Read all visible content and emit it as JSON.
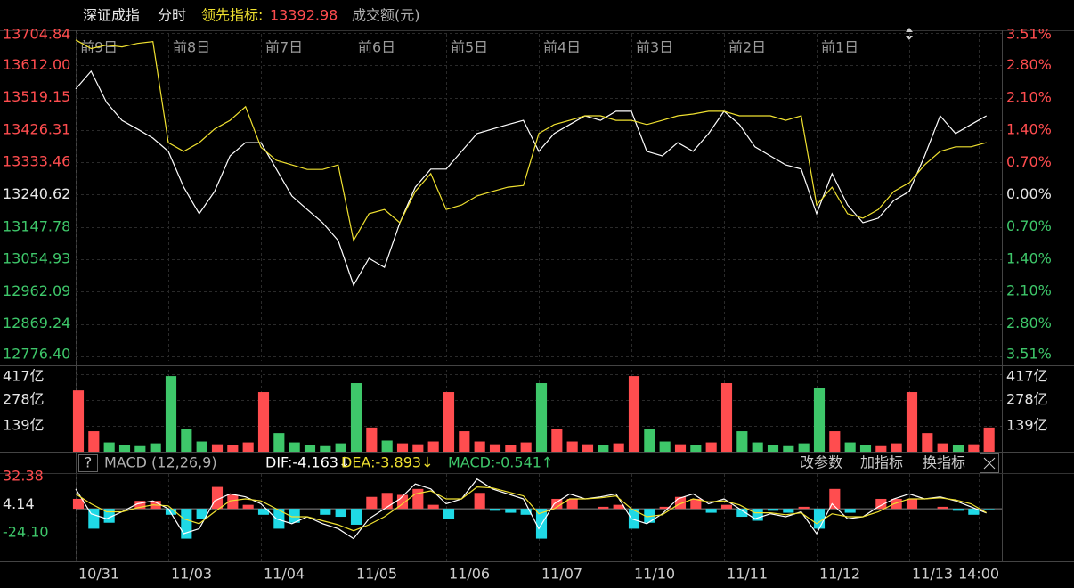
{
  "header": {
    "index_name": "深证成指",
    "mode": "分时",
    "leading_label": "领先指标:",
    "leading_value": "13392.98",
    "volume_label": "成交额(元)"
  },
  "chart_data": [
    {
      "type": "line",
      "x": [
        0,
        1,
        2,
        3,
        4,
        5,
        6,
        7,
        8,
        9,
        10,
        11,
        12,
        13,
        14,
        15,
        16,
        17,
        18,
        19,
        20,
        21,
        22,
        23,
        24,
        25,
        26,
        27,
        28,
        29,
        30,
        31,
        32,
        33,
        34,
        35,
        36,
        37,
        38,
        39,
        40,
        41,
        42,
        43,
        44,
        45,
        46,
        47,
        48,
        49,
        50,
        51,
        52,
        53,
        54,
        55,
        56,
        57,
        58,
        59
      ],
      "xlim": [
        0,
        60
      ],
      "xticks": [
        {
          "value": 0,
          "label": "前9日"
        },
        {
          "value": 6,
          "label": "前8日"
        },
        {
          "value": 12,
          "label": "前7日"
        },
        {
          "value": 18,
          "label": "前6日"
        },
        {
          "value": 24,
          "label": "前5日"
        },
        {
          "value": 30,
          "label": "前4日"
        },
        {
          "value": 36,
          "label": "前3日"
        },
        {
          "value": 42,
          "label": "前2日"
        },
        {
          "value": 48,
          "label": "前1日"
        }
      ],
      "ylim": [
        12776.4,
        13704.84
      ],
      "yticks": [
        13704.84,
        {
          "value": 13612,
          "label": "13612.00"
        },
        13519.15,
        13426.31,
        13333.46,
        13240.62,
        13147.78,
        13054.93,
        12962.09,
        12869.24,
        {
          "value": 12776.4,
          "label": "12776.40"
        }
      ],
      "y2lim": [
        -3.51,
        3.51
      ],
      "y2ticks": [
        {
          "value": 3.51,
          "label": "3.51%"
        },
        {
          "value": 2.8,
          "label": "2.80%"
        },
        {
          "value": 2.1,
          "label": "2.10%"
        },
        {
          "value": 1.4,
          "label": "1.40%"
        },
        {
          "value": 0.7,
          "label": "0.70%"
        },
        {
          "value": 0,
          "label": "0.00%"
        },
        {
          "value": -0.7,
          "label": "0.70%"
        },
        {
          "value": -1.4,
          "label": "1.40%"
        },
        {
          "value": -2.1,
          "label": "2.10%"
        },
        {
          "value": -2.8,
          "label": "2.80%"
        },
        {
          "value": -3.51,
          "label": "3.51%"
        }
      ],
      "series": [
        {
          "color": "#ffffff",
          "values": [
            13544,
            13595,
            13505,
            13454,
            13429,
            13403,
            13365,
            13262,
            13186,
            13250,
            13352,
            13390,
            13390,
            13314,
            13237,
            13198,
            13160,
            13109,
            12981,
            13058,
            13032,
            13160,
            13262,
            13314,
            13314,
            13365,
            13416,
            13429,
            13442,
            13454,
            13365,
            13416,
            13442,
            13467,
            13454,
            13480,
            13480,
            13365,
            13352,
            13390,
            13365,
            13416,
            13480,
            13442,
            13378,
            13352,
            13326,
            13314,
            13186,
            13301,
            13211,
            13160,
            13173,
            13224,
            13250,
            13352,
            13467,
            13416,
            13442,
            13467
          ]
        },
        {
          "color": "#f0e130",
          "values": [
            13685,
            13660,
            13670,
            13665,
            13675,
            13680,
            13390,
            13365,
            13390,
            13429,
            13454,
            13493,
            13377,
            13339,
            13326,
            13313,
            13313,
            13326,
            13109,
            13186,
            13198,
            13160,
            13250,
            13301,
            13198,
            13211,
            13237,
            13250,
            13262,
            13267,
            13416,
            13442,
            13454,
            13467,
            13467,
            13454,
            13454,
            13442,
            13454,
            13467,
            13472,
            13480,
            13480,
            13467,
            13467,
            13467,
            13454,
            13467,
            13211,
            13262,
            13186,
            13173,
            13198,
            13250,
            13275,
            13326,
            13365,
            13378,
            13378,
            13390
          ]
        }
      ],
      "grid": true
    },
    {
      "type": "bar",
      "x": [
        0,
        1,
        2,
        3,
        4,
        5,
        6,
        7,
        8,
        9,
        10,
        11,
        12,
        13,
        14,
        15,
        16,
        17,
        18,
        19,
        20,
        21,
        22,
        23,
        24,
        25,
        26,
        27,
        28,
        29,
        30,
        31,
        32,
        33,
        34,
        35,
        36,
        37,
        38,
        39,
        40,
        41,
        42,
        43,
        44,
        45,
        46,
        47,
        48,
        49,
        50,
        51,
        52,
        53,
        54,
        55,
        56,
        57,
        58,
        59
      ],
      "xlim": [
        0,
        60
      ],
      "ylim": [
        0,
        417
      ],
      "yticks": [
        {
          "value": 417,
          "label": "417亿"
        },
        {
          "value": 278,
          "label": "278亿"
        },
        {
          "value": 139,
          "label": "139亿"
        }
      ],
      "values": [
        330,
        110,
        50,
        35,
        30,
        45,
        407,
        120,
        55,
        40,
        35,
        50,
        321,
        100,
        50,
        35,
        30,
        45,
        369,
        130,
        60,
        45,
        40,
        55,
        321,
        110,
        55,
        40,
        35,
        50,
        369,
        120,
        55,
        40,
        35,
        45,
        407,
        120,
        55,
        40,
        35,
        50,
        369,
        110,
        50,
        35,
        30,
        45,
        345,
        110,
        50,
        35,
        30,
        45,
        321,
        100,
        45,
        35,
        40,
        130
      ],
      "up_color": "#ff4d4f",
      "down_color": "#3ec76a"
    },
    {
      "type": "macd",
      "help_button": "?",
      "title": "MACD (12,26,9)",
      "legend_labels": [
        "DIF:-4.163↓",
        "DEA:-3.893↓",
        "MACD:-0.541↑"
      ],
      "buttons": [
        "改参数",
        "加指标",
        "换指标"
      ],
      "x": [
        0,
        1,
        2,
        3,
        4,
        5,
        6,
        7,
        8,
        9,
        10,
        11,
        12,
        13,
        14,
        15,
        16,
        17,
        18,
        19,
        20,
        21,
        22,
        23,
        24,
        25,
        26,
        27,
        28,
        29,
        30,
        31,
        32,
        33,
        34,
        35,
        36,
        37,
        38,
        39,
        40,
        41,
        42,
        43,
        44,
        45,
        46,
        47,
        48,
        49,
        50,
        51,
        52,
        53,
        54,
        55,
        56,
        57,
        58,
        59
      ],
      "xlim": [
        0,
        60
      ],
      "xticks": [
        {
          "value": 0,
          "label": "10/31"
        },
        {
          "value": 6,
          "label": "11/03"
        },
        {
          "value": 12,
          "label": "11/04"
        },
        {
          "value": 18,
          "label": "11/05"
        },
        {
          "value": 24,
          "label": "11/06"
        },
        {
          "value": 30,
          "label": "11/07"
        },
        {
          "value": 36,
          "label": "11/10"
        },
        {
          "value": 42,
          "label": "11/11"
        },
        {
          "value": 48,
          "label": "11/12"
        },
        {
          "value": 54,
          "label": "11/13"
        },
        {
          "value": 58.5,
          "label": "14:00"
        }
      ],
      "ylim": [
        -24.1,
        32.38
      ],
      "yticks": [
        32.38,
        4.14,
        {
          "value": -24.1,
          "label": "-24.10"
        }
      ],
      "series": [
        {
          "name": "DIF",
          "color": "#ffffff",
          "values": [
            20,
            -5,
            -10,
            -3,
            5,
            8,
            0,
            -25,
            -20,
            8,
            15,
            12,
            5,
            -10,
            -15,
            -8,
            -15,
            -20,
            -30,
            -10,
            0,
            10,
            25,
            20,
            5,
            10,
            30,
            20,
            15,
            10,
            -20,
            5,
            15,
            10,
            12,
            15,
            -10,
            -15,
            -5,
            10,
            15,
            5,
            10,
            0,
            -10,
            -5,
            -8,
            -3,
            -25,
            5,
            -10,
            -8,
            2,
            10,
            15,
            10,
            12,
            8,
            2,
            -4.163
          ]
        },
        {
          "name": "DEA",
          "color": "#f0e130",
          "values": [
            15,
            5,
            -3,
            -3,
            1,
            4,
            3,
            -10,
            -15,
            -3,
            8,
            10,
            8,
            0,
            -8,
            -8,
            -12,
            -16,
            -22,
            -16,
            -8,
            3,
            15,
            18,
            10,
            10,
            22,
            21,
            17,
            13,
            -5,
            0,
            10,
            10,
            11,
            13,
            0,
            -8,
            -6,
            4,
            10,
            7,
            8,
            4,
            -4,
            -4,
            -6,
            -4,
            -15,
            -5,
            -8,
            -8,
            -3,
            5,
            10,
            10,
            11,
            9,
            5,
            -3.893
          ]
        },
        {
          "name": "MACD",
          "values": [
            10,
            -20,
            -14,
            0,
            8,
            8,
            -6,
            -30,
            -10,
            22,
            14,
            4,
            -6,
            -20,
            -14,
            0,
            -6,
            -8,
            -16,
            12,
            16,
            14,
            20,
            4,
            -10,
            0,
            16,
            -2,
            -4,
            -6,
            -30,
            10,
            10,
            0,
            2,
            4,
            -20,
            -14,
            2,
            12,
            10,
            -4,
            4,
            -8,
            -12,
            -2,
            -4,
            2,
            -20,
            20,
            -4,
            0,
            10,
            10,
            10,
            0,
            2,
            -2,
            -6,
            -0.541
          ]
        }
      ],
      "up_color": "#ff4d4f",
      "down_color": "#1fd9e6"
    }
  ]
}
